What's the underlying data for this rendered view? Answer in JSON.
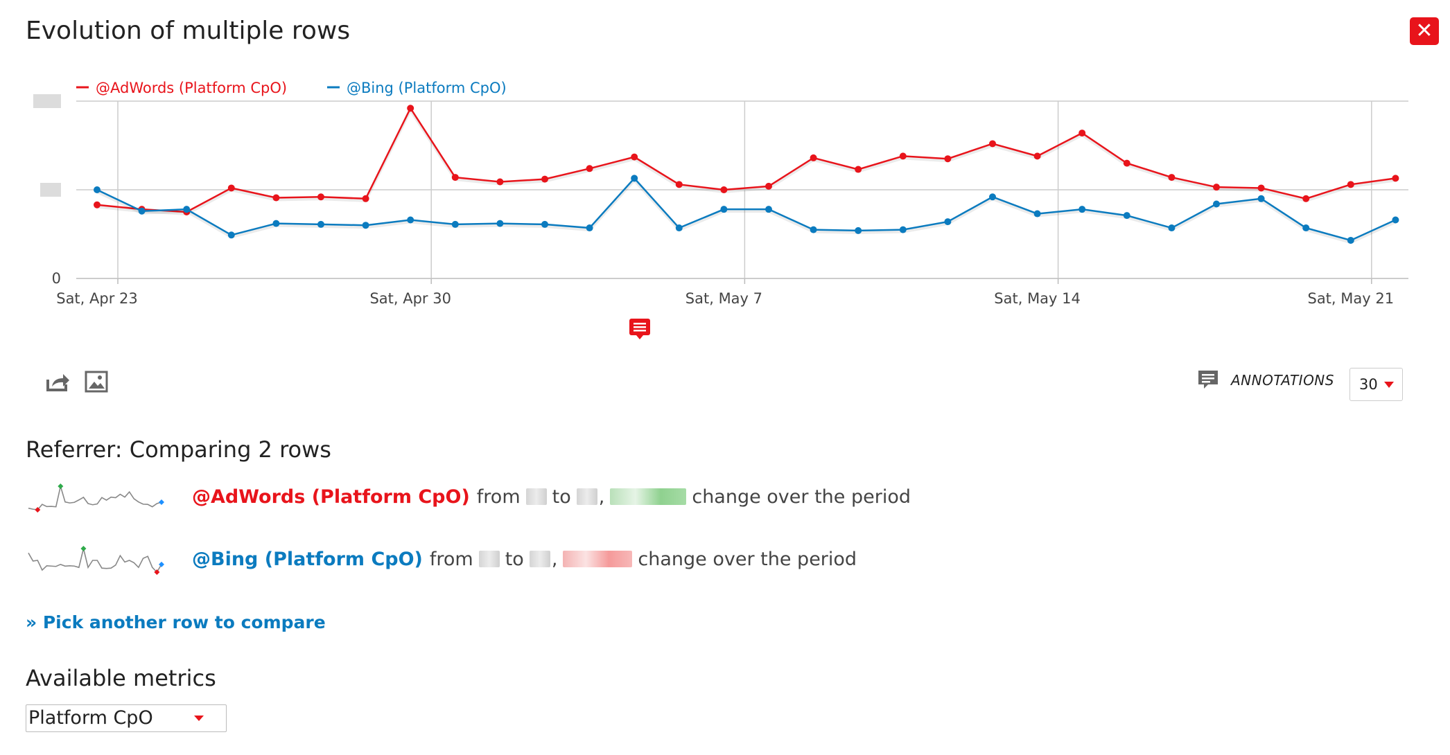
{
  "title": "Evolution of multiple rows",
  "close_label": "✕",
  "chart_data": {
    "type": "line",
    "x": [
      "Sat, Apr 23",
      "Sun, Apr 24",
      "Mon, Apr 25",
      "Tue, Apr 26",
      "Wed, Apr 27",
      "Thu, Apr 28",
      "Fri, Apr 29",
      "Sat, Apr 30",
      "Sun, May 1",
      "Mon, May 2",
      "Tue, May 3",
      "Wed, May 4",
      "Thu, May 5",
      "Fri, May 6",
      "Sat, May 7",
      "Sun, May 8",
      "Mon, May 9",
      "Tue, May 10",
      "Wed, May 11",
      "Thu, May 12",
      "Fri, May 13",
      "Sat, May 14",
      "Sun, May 15",
      "Mon, May 16",
      "Tue, May 17",
      "Wed, May 18",
      "Thu, May 19",
      "Fri, May 20",
      "Sat, May 21",
      "Sun, May 22"
    ],
    "tick_labels": [
      "Sat, Apr 23",
      "Sat, Apr 30",
      "Sat, May 7",
      "Sat, May 14",
      "Sat, May 21"
    ],
    "y_tick_labels": [
      "0"
    ],
    "ylim": [
      0,
      2
    ],
    "grid": true,
    "legend_position": "top-left",
    "series": [
      {
        "name": "@AdWords (Platform CpO)",
        "color": "#e8141b",
        "values": [
          0.83,
          0.78,
          0.75,
          1.02,
          0.91,
          0.92,
          0.9,
          1.92,
          1.14,
          1.09,
          1.12,
          1.24,
          1.37,
          1.06,
          1.0,
          1.04,
          1.36,
          1.23,
          1.38,
          1.35,
          1.52,
          1.38,
          1.64,
          1.3,
          1.14,
          1.03,
          1.02,
          0.9,
          1.06,
          1.13
        ]
      },
      {
        "name": "@Bing (Platform CpO)",
        "color": "#0b7bbf",
        "values": [
          1.0,
          0.76,
          0.78,
          0.49,
          0.62,
          0.61,
          0.6,
          0.66,
          0.61,
          0.62,
          0.61,
          0.57,
          1.13,
          0.57,
          0.78,
          0.78,
          0.55,
          0.54,
          0.55,
          0.64,
          0.92,
          0.73,
          0.78,
          0.71,
          0.57,
          0.84,
          0.9,
          0.57,
          0.43,
          0.66
        ]
      }
    ]
  },
  "toolbar": {
    "export_icon": "export-icon",
    "image_icon": "image-icon"
  },
  "annotations": {
    "label": "ANNOTATIONS",
    "period": "30"
  },
  "comparison": {
    "title": "Referrer: Comparing 2 rows",
    "rows": [
      {
        "name": "@AdWords (Platform CpO)",
        "color": "#e8141b",
        "from_word": "from",
        "to_word": "to",
        "comma": ",",
        "suffix": "change over the period",
        "sparkline": [
          0.83,
          0.78,
          0.75,
          1.02,
          0.91,
          0.92,
          0.9,
          1.92,
          1.14,
          1.09,
          1.12,
          1.24,
          1.37,
          1.06,
          1.0,
          1.04,
          1.36,
          1.23,
          1.38,
          1.35,
          1.52,
          1.38,
          1.64,
          1.3,
          1.14,
          1.03,
          1.02,
          0.9,
          1.06,
          1.13
        ]
      },
      {
        "name": "@Bing (Platform CpO)",
        "color": "#0b7bbf",
        "from_word": "from",
        "to_word": "to",
        "comma": ",",
        "suffix": "change over the period",
        "sparkline": [
          1.0,
          0.76,
          0.78,
          0.49,
          0.62,
          0.61,
          0.6,
          0.66,
          0.61,
          0.62,
          0.61,
          0.57,
          1.13,
          0.57,
          0.78,
          0.78,
          0.55,
          0.54,
          0.55,
          0.64,
          0.92,
          0.73,
          0.78,
          0.71,
          0.57,
          0.84,
          0.9,
          0.57,
          0.43,
          0.66
        ]
      }
    ],
    "pick_link": "» Pick another row to compare"
  },
  "metrics": {
    "title": "Available metrics",
    "selected": "Platform CpO"
  }
}
